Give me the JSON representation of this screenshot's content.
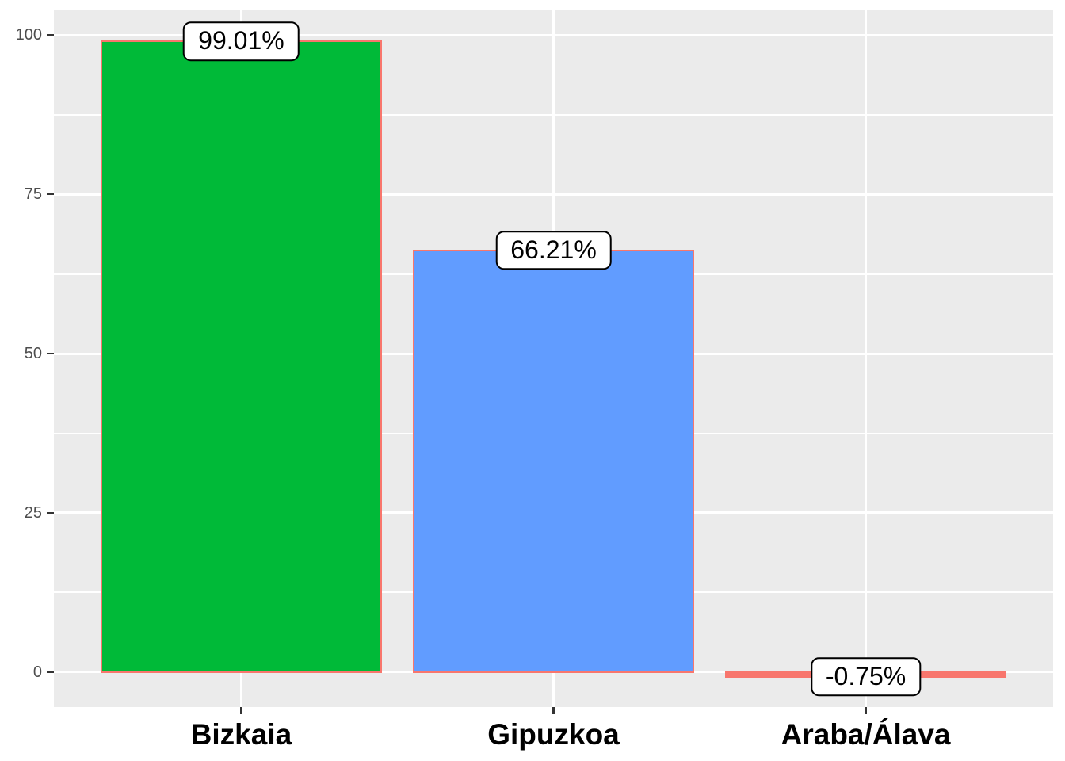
{
  "chart_data": {
    "type": "bar",
    "title": "",
    "xlabel": "",
    "ylabel": "",
    "categories": [
      "Bizkaia",
      "Gipuzkoa",
      "Araba/Álava"
    ],
    "values": [
      99.01,
      66.21,
      -0.75
    ],
    "value_labels": [
      "99.01%",
      "66.21%",
      "-0.75%"
    ],
    "bar_fill_colors": [
      "#00BA38",
      "#619CFF",
      "#F8766D"
    ],
    "bar_border_color": "#F8766D",
    "y_major_ticks": [
      0,
      25,
      50,
      75,
      100
    ],
    "y_major_tick_labels": [
      "0",
      "25",
      "50",
      "75",
      "100"
    ],
    "y_minor_ticks": [
      12.5,
      37.5,
      62.5,
      87.5
    ],
    "ylim": [
      -5.5,
      103.9
    ],
    "grid": true,
    "legend": false,
    "colors": {
      "panel_background": "#EBEBEB",
      "gridline": "#FFFFFF",
      "axis_tick": "#333333",
      "y_axis_text": "#4D4D4D",
      "x_axis_text": "#000000",
      "label_box_background": "#FFFFFF",
      "label_box_border": "#000000",
      "page_background": "#FFFFFF"
    }
  }
}
